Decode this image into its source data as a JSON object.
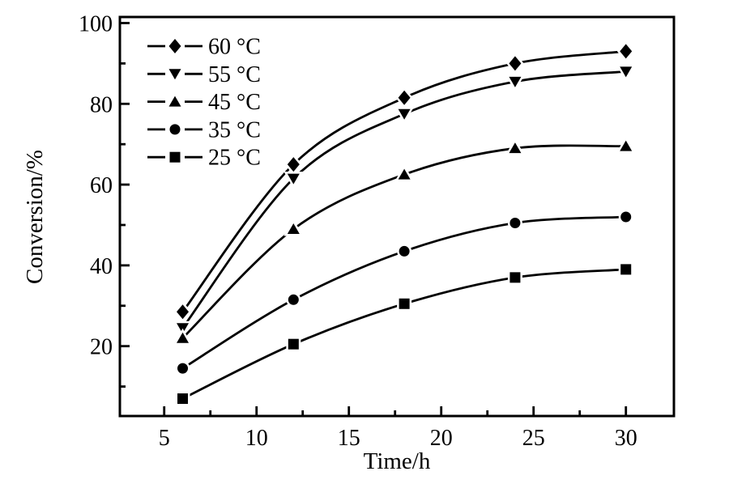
{
  "figure": {
    "background": "#ffffff",
    "foreground": "#000000"
  },
  "chart_data": {
    "type": "line",
    "title": "",
    "xlabel": "Time/h",
    "ylabel": "Conversion/%",
    "xlim": [
      2.6,
      32.6
    ],
    "ylim": [
      2.7,
      101.5
    ],
    "x_major_ticks": [
      5,
      10,
      15,
      20,
      25,
      30
    ],
    "x_minor_ticks": [
      7.5,
      12.5,
      17.5,
      22.5,
      27.5
    ],
    "y_major_ticks": [
      20,
      40,
      60,
      80,
      100
    ],
    "y_minor_ticks": [
      10,
      30,
      50,
      70,
      90
    ],
    "grid": false,
    "legend_position": "top-left",
    "line_color": "#000000",
    "marker_color": "#000000",
    "x": [
      6,
      12,
      18,
      24,
      30
    ],
    "series": [
      {
        "name": "60 °C",
        "marker": "diamond",
        "values": [
          28.5,
          65,
          81.5,
          90,
          93
        ]
      },
      {
        "name": "55 °C",
        "marker": "triangle-down",
        "values": [
          24.5,
          61.5,
          77.5,
          85.5,
          88
        ]
      },
      {
        "name": "45 °C",
        "marker": "triangle-up",
        "values": [
          22,
          49,
          62.5,
          69,
          69.5
        ]
      },
      {
        "name": "35 °C",
        "marker": "circle",
        "values": [
          14.5,
          31.5,
          43.5,
          50.5,
          52
        ]
      },
      {
        "name": "25 °C",
        "marker": "square",
        "values": [
          7,
          20.5,
          30.5,
          37,
          39
        ]
      }
    ]
  }
}
